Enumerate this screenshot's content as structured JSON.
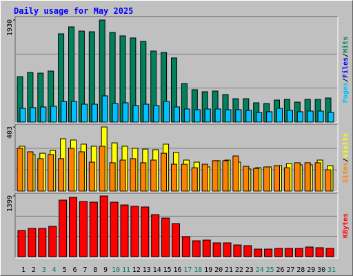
{
  "title": "Daily usage for May 2025",
  "legend_separator": "/",
  "chart_data": [
    {
      "type": "bar",
      "ylim": [
        0,
        1930
      ],
      "yticks": [
        1930
      ],
      "series": [
        {
          "name": "Hits",
          "color": "#00805c",
          "values": [
            860,
            939,
            926,
            965,
            1669,
            1800,
            1721,
            1708,
            1930,
            1695,
            1630,
            1591,
            1526,
            1343,
            1317,
            1213,
            730,
            613,
            574,
            587,
            522,
            443,
            443,
            365,
            352,
            417,
            430,
            378,
            430,
            430,
            456
          ]
        },
        {
          "name": "Files",
          "color": "#0000ff",
          "values": [
            261,
            274,
            287,
            300,
            391,
            391,
            339,
            339,
            496,
            352,
            365,
            313,
            339,
            313,
            391,
            287,
            248,
            235,
            248,
            248,
            235,
            235,
            222,
            183,
            196,
            261,
            222,
            196,
            209,
            209,
            183
          ]
        },
        {
          "name": "Pages",
          "color": "#00c0ff",
          "values": [
            261,
            274,
            287,
            300,
            391,
            391,
            339,
            339,
            496,
            352,
            365,
            313,
            339,
            313,
            391,
            287,
            248,
            235,
            248,
            248,
            235,
            235,
            222,
            183,
            196,
            261,
            222,
            196,
            209,
            209,
            183
          ]
        }
      ]
    },
    {
      "type": "bar",
      "ylim": [
        0,
        403
      ],
      "yticks": [
        403
      ],
      "series": [
        {
          "name": "Visits",
          "color": "#ffff00",
          "values": [
            282,
            230,
            238,
            256,
            329,
            321,
            295,
            282,
            403,
            303,
            282,
            269,
            264,
            260,
            295,
            243,
            195,
            182,
            152,
            191,
            195,
            182,
            139,
            147,
            152,
            160,
            173,
            165,
            165,
            195,
            160
          ]
        },
        {
          "name": "Sites",
          "color": "#ff8000",
          "values": [
            269,
            247,
            204,
            230,
            204,
            269,
            247,
            182,
            282,
            178,
            195,
            204,
            178,
            195,
            238,
            169,
            169,
            147,
            169,
            191,
            191,
            221,
            156,
            143,
            152,
            160,
            147,
            178,
            178,
            178,
            134
          ]
        }
      ]
    },
    {
      "type": "bar",
      "ylim": [
        0,
        1399
      ],
      "yticks": [
        1399
      ],
      "categories": [
        "1",
        "2",
        "3",
        "4",
        "5",
        "6",
        "7",
        "8",
        "9",
        "10",
        "11",
        "12",
        "13",
        "14",
        "15",
        "16",
        "17",
        "18",
        "19",
        "20",
        "21",
        "22",
        "23",
        "24",
        "25",
        "26",
        "27",
        "28",
        "29",
        "30",
        "31"
      ],
      "category_colors": [
        "#000000",
        "#000000",
        "#00805c",
        "#00805c",
        "#000000",
        "#000000",
        "#000000",
        "#000000",
        "#000000",
        "#00805c",
        "#00805c",
        "#000000",
        "#000000",
        "#000000",
        "#000000",
        "#000000",
        "#00805c",
        "#00805c",
        "#000000",
        "#000000",
        "#000000",
        "#000000",
        "#000000",
        "#00805c",
        "#00805c",
        "#000000",
        "#000000",
        "#000000",
        "#000000",
        "#000000",
        "#00805c"
      ],
      "series": [
        {
          "name": "KBytes",
          "color": "#ff0000",
          "values": [
            604,
            652,
            652,
            699,
            1304,
            1367,
            1272,
            1256,
            1399,
            1256,
            1192,
            1161,
            1145,
            970,
            890,
            763,
            461,
            366,
            382,
            318,
            318,
            270,
            254,
            175,
            175,
            191,
            191,
            191,
            223,
            207,
            191
          ]
        }
      ]
    }
  ]
}
